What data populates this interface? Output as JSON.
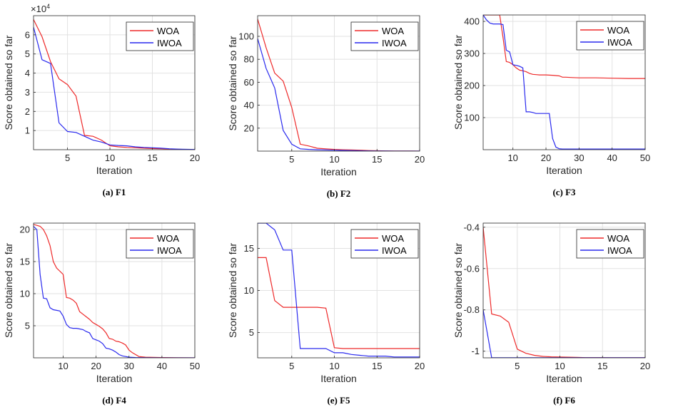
{
  "colors": {
    "WOA": "#ee2a2a",
    "IWOA": "#2a2aee",
    "grid": "#e2e2e2",
    "axis": "#262626"
  },
  "chart_data": [
    {
      "type": "line",
      "caption": "(a) F1",
      "xlabel": "Iteration",
      "ylabel": "Score obtained so far",
      "exponent_label": "×10",
      "exponent_power": "4",
      "xlim": [
        1,
        20
      ],
      "ylim": [
        0,
        7
      ],
      "xticks": [
        5,
        10,
        15,
        20
      ],
      "xtick_labels": [
        "5",
        "10",
        "15",
        "20"
      ],
      "yticks": [
        1,
        2,
        3,
        4,
        5,
        6
      ],
      "ytick_labels": [
        "1",
        "2",
        "3",
        "4",
        "5",
        "6"
      ],
      "legend_position": "top-right",
      "series": [
        {
          "name": "WOA",
          "x": [
            1,
            2,
            3,
            4,
            5,
            6,
            7,
            8,
            9,
            10,
            11,
            12,
            13,
            14,
            15,
            16,
            17,
            18,
            19,
            20
          ],
          "y": [
            6.8,
            5.9,
            4.6,
            3.7,
            3.4,
            2.8,
            0.75,
            0.7,
            0.5,
            0.2,
            0.15,
            0.12,
            0.1,
            0.08,
            0.06,
            0.05,
            0.03,
            0.02,
            0.01,
            0.0
          ]
        },
        {
          "name": "IWOA",
          "x": [
            1,
            2,
            3,
            4,
            5,
            6,
            7,
            8,
            9,
            10,
            11,
            12,
            13,
            14,
            15,
            16,
            17,
            18,
            19,
            20
          ],
          "y": [
            6.4,
            4.7,
            4.5,
            1.4,
            0.95,
            0.9,
            0.7,
            0.5,
            0.4,
            0.25,
            0.22,
            0.2,
            0.15,
            0.12,
            0.1,
            0.08,
            0.05,
            0.03,
            0.02,
            0.01
          ]
        }
      ]
    },
    {
      "type": "line",
      "caption": "(b) F2",
      "xlabel": "Iteration",
      "ylabel": "Score obtained so far",
      "xlim": [
        1,
        20
      ],
      "ylim": [
        0,
        118
      ],
      "xticks": [
        5,
        10,
        15,
        20
      ],
      "xtick_labels": [
        "5",
        "10",
        "15",
        "20"
      ],
      "yticks": [
        20,
        40,
        60,
        80,
        100
      ],
      "ytick_labels": [
        "20",
        "40",
        "60",
        "80",
        "100"
      ],
      "legend_position": "top-right",
      "series": [
        {
          "name": "WOA",
          "x": [
            1,
            2,
            3,
            4,
            5,
            6,
            7,
            8,
            9,
            10,
            11,
            12,
            13,
            14,
            15,
            16,
            17,
            18,
            19,
            20
          ],
          "y": [
            115,
            90,
            68,
            61,
            38,
            6,
            4.5,
            2.5,
            2,
            1.5,
            1.2,
            1,
            0.8,
            0.5,
            0.3,
            0.2,
            0.1,
            0.1,
            0.05,
            0.0
          ]
        },
        {
          "name": "IWOA",
          "x": [
            1,
            2,
            3,
            4,
            5,
            6,
            7,
            8,
            9,
            10,
            11,
            12,
            13,
            14,
            15,
            16,
            17,
            18,
            19,
            20
          ],
          "y": [
            98,
            72,
            55,
            18,
            6,
            2,
            1.5,
            1.2,
            1,
            0.8,
            0.6,
            0.5,
            0.3,
            0.2,
            0.1,
            0.05,
            0.0,
            0.0,
            0.0,
            0.0
          ]
        }
      ]
    },
    {
      "type": "line",
      "caption": "(c) F3",
      "xlabel": "Iteration",
      "ylabel": "Score obtained so far",
      "xlim": [
        1,
        50
      ],
      "ylim": [
        0,
        420
      ],
      "xticks": [
        10,
        20,
        30,
        40,
        50
      ],
      "xtick_labels": [
        "10",
        "20",
        "30",
        "40",
        "50"
      ],
      "yticks": [
        100,
        200,
        300,
        400
      ],
      "ytick_labels": [
        "100",
        "200",
        "300",
        "400"
      ],
      "legend_position": "top-right",
      "series": [
        {
          "name": "WOA",
          "x": [
            1,
            2,
            3,
            4,
            5,
            6,
            7,
            8,
            9,
            10,
            11,
            12,
            13,
            14,
            15,
            16,
            17,
            18,
            19,
            20,
            22,
            24,
            25,
            26,
            28,
            30,
            35,
            40,
            45,
            50
          ],
          "y": [
            420,
            420,
            420,
            420,
            420,
            420,
            350,
            275,
            272,
            265,
            255,
            248,
            246,
            243,
            238,
            235,
            234,
            233,
            233,
            233,
            232,
            230,
            226,
            226,
            225,
            224,
            224,
            223,
            222,
            222
          ]
        },
        {
          "name": "IWOA",
          "x": [
            1,
            2,
            3,
            4,
            5,
            6,
            7,
            8,
            9,
            10,
            11,
            12,
            13,
            14,
            15,
            16,
            17,
            18,
            19,
            20,
            21,
            22,
            23,
            24,
            25,
            30,
            35,
            40,
            45,
            50
          ],
          "y": [
            420,
            405,
            395,
            392,
            392,
            392,
            390,
            310,
            305,
            265,
            263,
            260,
            255,
            118,
            118,
            116,
            113,
            113,
            113,
            113,
            113,
            35,
            8,
            3,
            2,
            2,
            2,
            2,
            2,
            2
          ]
        }
      ]
    },
    {
      "type": "line",
      "caption": "(d) F4",
      "xlabel": "Iteration",
      "ylabel": "Score obtained so far",
      "xlim": [
        1,
        50
      ],
      "ylim": [
        0,
        21
      ],
      "xticks": [
        10,
        20,
        30,
        40,
        50
      ],
      "xtick_labels": [
        "10",
        "20",
        "30",
        "40",
        "50"
      ],
      "yticks": [
        5,
        10,
        15,
        20
      ],
      "ytick_labels": [
        "5",
        "10",
        "15",
        "20"
      ],
      "legend_position": "top-right",
      "series": [
        {
          "name": "WOA",
          "x": [
            1,
            3,
            4,
            5,
            6,
            7,
            8,
            9,
            10,
            11,
            12,
            13,
            14,
            15,
            16,
            17,
            18,
            19,
            20,
            21,
            22,
            23,
            24,
            25,
            26,
            27,
            28,
            29,
            30,
            31,
            33,
            35,
            40,
            45,
            50
          ],
          "y": [
            20.8,
            20.5,
            20,
            19,
            17.5,
            15,
            14,
            13.5,
            13,
            9.4,
            9.3,
            9.0,
            8.5,
            7.2,
            6.8,
            6.4,
            6.0,
            5.5,
            5.2,
            4.9,
            4.5,
            3.9,
            3.0,
            2.9,
            2.6,
            2.5,
            2.3,
            2.0,
            1.2,
            0.8,
            0.2,
            0.1,
            0.05,
            0.02,
            0.0
          ]
        },
        {
          "name": "IWOA",
          "x": [
            1,
            2,
            3,
            4,
            5,
            6,
            7,
            8,
            9,
            10,
            11,
            12,
            13,
            14,
            15,
            16,
            17,
            18,
            19,
            20,
            21,
            22,
            23,
            24,
            25,
            26,
            27,
            28,
            29,
            30,
            32,
            35,
            40,
            45,
            50
          ],
          "y": [
            20.5,
            20,
            13,
            9.3,
            9.2,
            7.8,
            7.5,
            7.4,
            7.3,
            6.5,
            5.2,
            4.7,
            4.6,
            4.6,
            4.5,
            4.4,
            4.1,
            3.9,
            3.0,
            2.8,
            2.6,
            2.2,
            1.5,
            1.4,
            1.2,
            0.9,
            0.5,
            0.3,
            0.2,
            0.1,
            0.05,
            0.02,
            0.0,
            0.0,
            0.0
          ]
        }
      ]
    },
    {
      "type": "line",
      "caption": "(e) F5",
      "xlabel": "Iteration",
      "ylabel": "Score obtained so far",
      "xlim": [
        1,
        20
      ],
      "ylim": [
        2,
        18
      ],
      "xticks": [
        5,
        10,
        15,
        20
      ],
      "xtick_labels": [
        "5",
        "10",
        "15",
        "20"
      ],
      "yticks": [
        5,
        10,
        15
      ],
      "ytick_labels": [
        "5",
        "10",
        "15"
      ],
      "legend_position": "top-right",
      "series": [
        {
          "name": "WOA",
          "x": [
            1,
            2,
            3,
            4,
            5,
            6,
            7,
            8,
            9,
            10,
            11,
            12,
            13,
            14,
            15,
            16,
            17,
            18,
            19,
            20
          ],
          "y": [
            13.9,
            13.9,
            8.8,
            8.0,
            8.0,
            8.0,
            8.0,
            8.0,
            7.9,
            3.2,
            3.1,
            3.1,
            3.1,
            3.1,
            3.1,
            3.1,
            3.1,
            3.1,
            3.1,
            3.1
          ]
        },
        {
          "name": "IWOA",
          "x": [
            1,
            2,
            3,
            4,
            5,
            6,
            7,
            8,
            9,
            10,
            11,
            12,
            13,
            14,
            15,
            16,
            17,
            18,
            19,
            20
          ],
          "y": [
            18,
            18,
            17.2,
            14.8,
            14.8,
            3.1,
            3.1,
            3.1,
            3.1,
            2.6,
            2.6,
            2.4,
            2.3,
            2.2,
            2.2,
            2.2,
            2.1,
            2.1,
            2.1,
            2.1
          ]
        }
      ]
    },
    {
      "type": "line",
      "caption": "(f) F6",
      "xlabel": "Iteration",
      "ylabel": "Score obtained so far",
      "xlim": [
        1,
        20
      ],
      "ylim": [
        -1.032,
        -0.38
      ],
      "xticks": [
        5,
        10,
        15,
        20
      ],
      "xtick_labels": [
        "5",
        "10",
        "15",
        "20"
      ],
      "yticks": [
        -1,
        -0.8,
        -0.6,
        -0.4
      ],
      "ytick_labels": [
        "-1",
        "-0.8",
        "-0.6",
        "-0.4"
      ],
      "legend_position": "top-right",
      "series": [
        {
          "name": "WOA",
          "x": [
            1,
            2,
            3,
            4,
            5,
            6,
            7,
            8,
            9,
            10,
            11,
            12,
            13,
            14,
            15,
            16,
            17,
            18,
            19,
            20
          ],
          "y": [
            -0.4,
            -0.82,
            -0.83,
            -0.86,
            -0.99,
            -1.01,
            -1.02,
            -1.025,
            -1.027,
            -1.028,
            -1.029,
            -1.03,
            -1.031,
            -1.031,
            -1.031,
            -1.0316,
            -1.0316,
            -1.0316,
            -1.0316,
            -1.0316
          ]
        },
        {
          "name": "IWOA",
          "x": [
            1,
            2,
            3,
            4,
            5,
            6,
            7,
            8,
            9,
            10,
            11,
            12,
            13,
            14,
            15,
            16,
            17,
            18,
            19,
            20
          ],
          "y": [
            -0.8,
            -1.0316,
            -1.0316,
            -1.0316,
            -1.0316,
            -1.0316,
            -1.0316,
            -1.0316,
            -1.0316,
            -1.0316,
            -1.0316,
            -1.0316,
            -1.0316,
            -1.0316,
            -1.0316,
            -1.0316,
            -1.0316,
            -1.0316,
            -1.0316,
            -1.0316
          ]
        }
      ]
    }
  ]
}
